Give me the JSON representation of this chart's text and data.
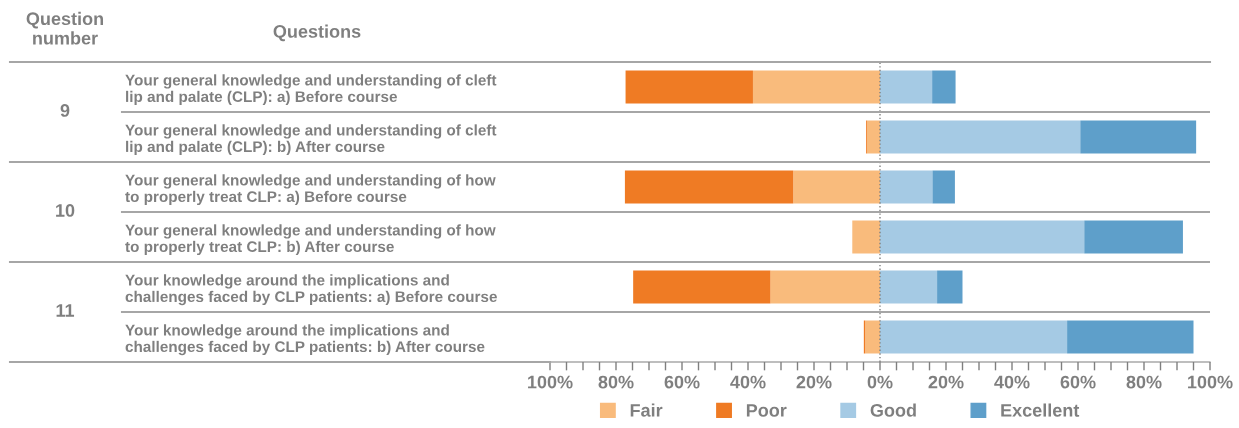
{
  "chart_data": {
    "type": "bar",
    "orientation": "horizontal",
    "stacked": true,
    "categories": [
      "Your general knowledge and understanding of cleft\nlip and palate (CLP): a) Before course",
      "Your general knowledge and understanding of cleft\nlip and palate (CLP): b) After course",
      "Your general knowledge and understanding of how\nto properly treat CLP: a) Before course",
      "Your general knowledge and understanding of how\nto properly treat CLP: b) After course",
      "Your knowledge around the implications and\nchallenges faced by CLP patients: a) Before course",
      "Your knowledge around the implications and\nchallenges faced by CLP patients: b) After course"
    ],
    "series": [
      {
        "name": "Fair",
        "color": "#f9bb7c",
        "values": [
          -38.5,
          -3.9,
          -26.3,
          -8.4,
          -33.2,
          -4.5
        ]
      },
      {
        "name": "Poor",
        "color": "#ef7b24",
        "values": [
          -38.6,
          -0.3,
          -51.0,
          0,
          -41.6,
          -0.4
        ]
      },
      {
        "name": "Good",
        "color": "#a5cae4",
        "values": [
          15.8,
          60.7,
          15.9,
          61.9,
          17.3,
          56.7
        ]
      },
      {
        "name": "Excellent",
        "color": "#5e9fca",
        "values": [
          7.1,
          35.1,
          6.8,
          29.9,
          7.7,
          38.3
        ]
      }
    ],
    "xlim": [
      -100,
      100
    ],
    "xticks": [
      {
        "value": -100,
        "label": "100%"
      },
      {
        "value": -95,
        "label": null
      },
      {
        "value": -90,
        "label": null
      },
      {
        "value": -85,
        "label": null
      },
      {
        "value": -80,
        "label": "80%"
      },
      {
        "value": -75,
        "label": null
      },
      {
        "value": -70,
        "label": null
      },
      {
        "value": -65,
        "label": null
      },
      {
        "value": -60,
        "label": "60%"
      },
      {
        "value": -55,
        "label": null
      },
      {
        "value": -50,
        "label": null
      },
      {
        "value": -45,
        "label": null
      },
      {
        "value": -40,
        "label": "40%"
      },
      {
        "value": -35,
        "label": null
      },
      {
        "value": -30,
        "label": null
      },
      {
        "value": -25,
        "label": null
      },
      {
        "value": -20,
        "label": "20%"
      },
      {
        "value": -15,
        "label": null
      },
      {
        "value": -10,
        "label": null
      },
      {
        "value": -5,
        "label": null
      },
      {
        "value": 0,
        "label": "0%"
      },
      {
        "value": 5,
        "label": null
      },
      {
        "value": 10,
        "label": null
      },
      {
        "value": 15,
        "label": null
      },
      {
        "value": 20,
        "label": "20%"
      },
      {
        "value": 25,
        "label": null
      },
      {
        "value": 30,
        "label": null
      },
      {
        "value": 35,
        "label": null
      },
      {
        "value": 40,
        "label": "40%"
      },
      {
        "value": 45,
        "label": null
      },
      {
        "value": 50,
        "label": null
      },
      {
        "value": 55,
        "label": null
      },
      {
        "value": 60,
        "label": "60%"
      },
      {
        "value": 65,
        "label": null
      },
      {
        "value": 70,
        "label": null
      },
      {
        "value": 75,
        "label": null
      },
      {
        "value": 80,
        "label": "80%"
      },
      {
        "value": 85,
        "label": null
      },
      {
        "value": 90,
        "label": null
      },
      {
        "value": 95,
        "label": null
      },
      {
        "value": 100,
        "label": "100%"
      }
    ],
    "ref_lines": [
      {
        "axis": "x",
        "value": 0,
        "label": null,
        "color": "#7f7f7f",
        "line_style": "dotted"
      }
    ],
    "annotations": [
      "Question\nnumber",
      "Questions",
      "9",
      "10",
      "11"
    ],
    "legend": "bottom",
    "grid": false
  }
}
